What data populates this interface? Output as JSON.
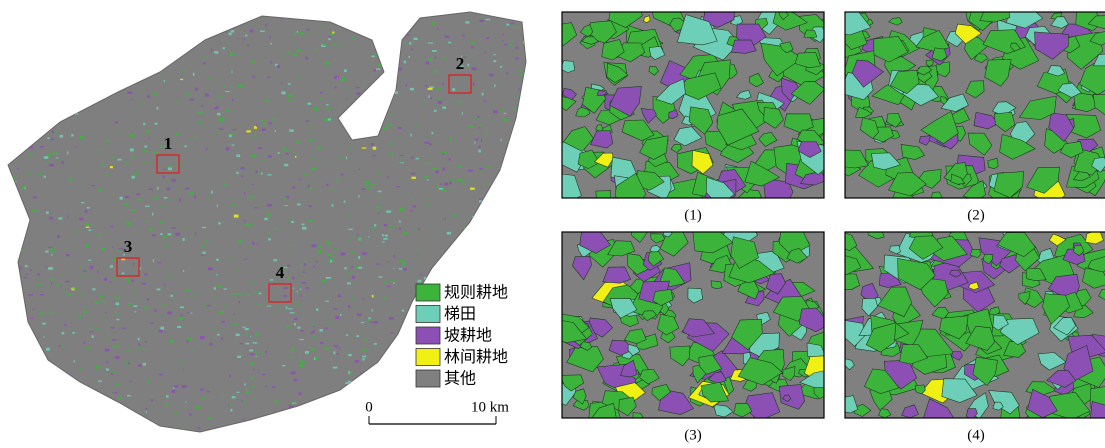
{
  "map": {
    "regions": [
      {
        "label": "1"
      },
      {
        "label": "2"
      },
      {
        "label": "3"
      },
      {
        "label": "4"
      }
    ],
    "legend": [
      {
        "label": "规则耕地",
        "color": "#3cb43c"
      },
      {
        "label": "梯田",
        "color": "#6ecfb8"
      },
      {
        "label": "坡耕地",
        "color": "#8c4fb4"
      },
      {
        "label": "林间耕地",
        "color": "#f0f014"
      },
      {
        "label": "其他",
        "color": "#808080"
      }
    ],
    "scale_bar": {
      "start": "0",
      "end": "10 km"
    }
  },
  "panels": [
    {
      "caption": "(1)"
    },
    {
      "caption": "(2)"
    },
    {
      "caption": "(3)"
    },
    {
      "caption": "(4)"
    }
  ]
}
